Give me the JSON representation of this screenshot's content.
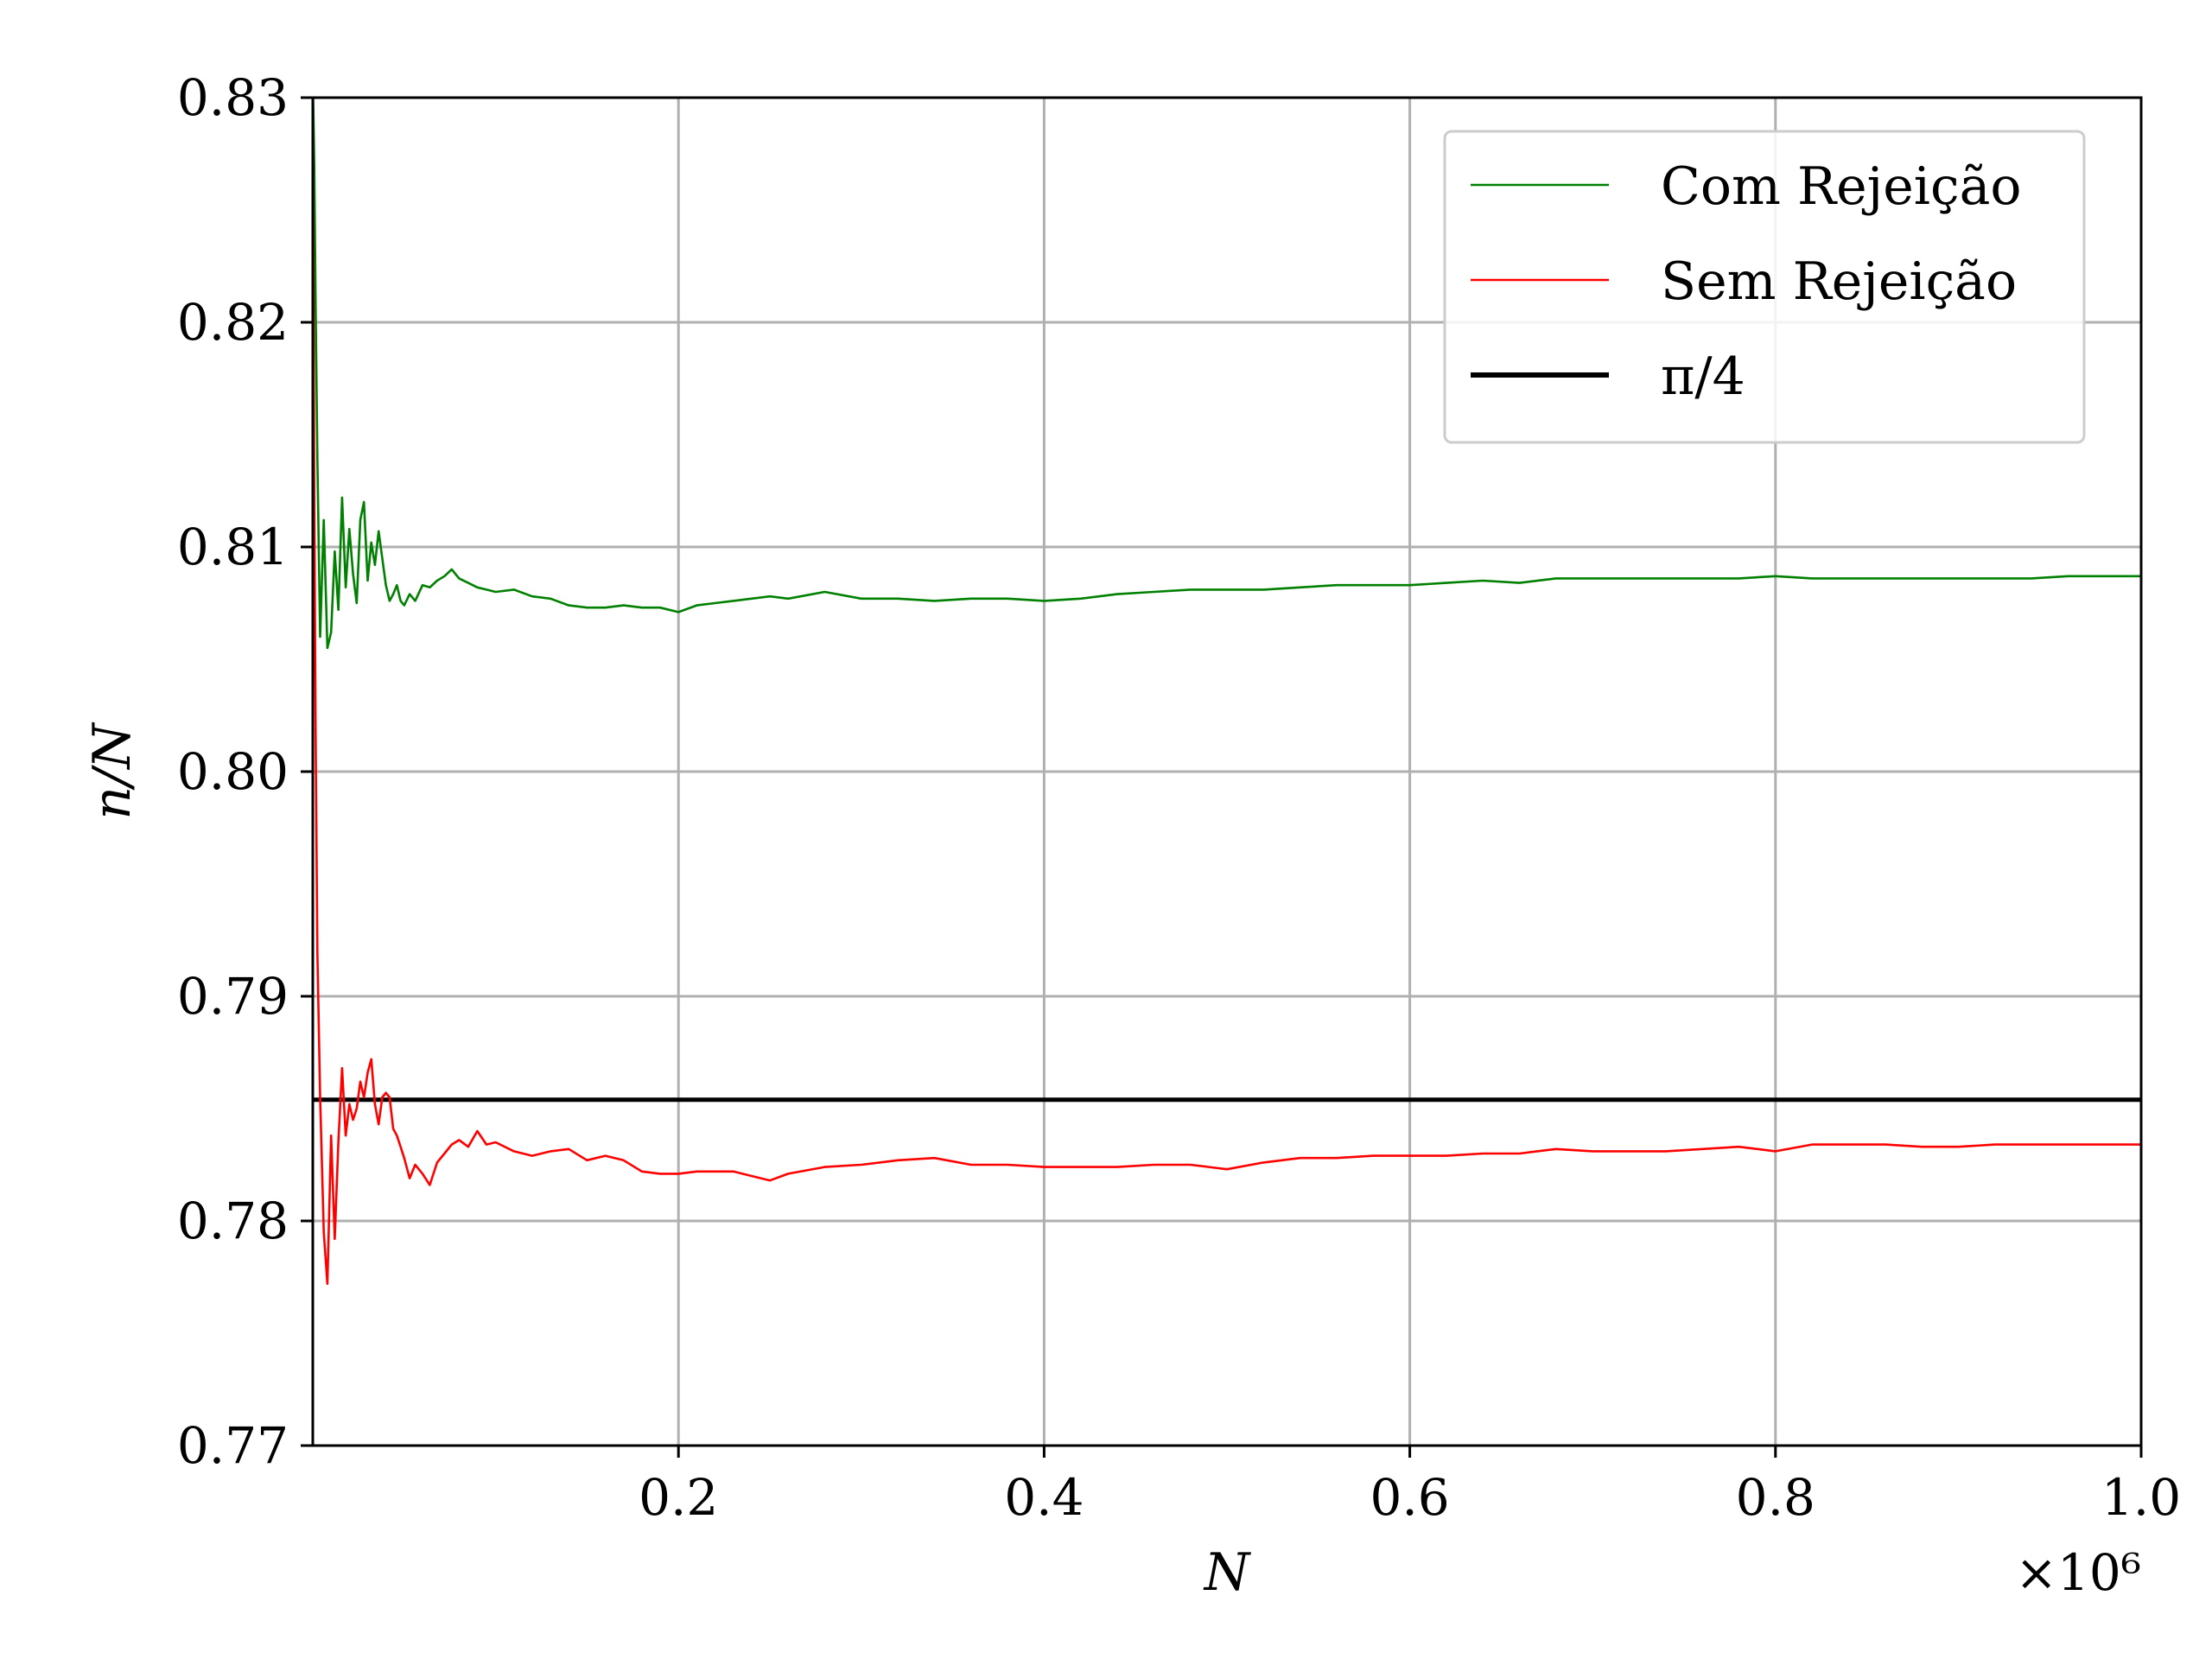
{
  "chart_data": {
    "type": "line",
    "xlabel": "N",
    "ylabel": "n/N",
    "x_multiplier_label": "×10⁶",
    "xlim": [
      0,
      1000000
    ],
    "ylim": [
      0.77,
      0.83
    ],
    "x_ticks": [
      200000,
      400000,
      600000,
      800000,
      1000000
    ],
    "x_tick_labels": [
      "0.2",
      "0.4",
      "0.6",
      "0.8",
      "1.0"
    ],
    "y_ticks": [
      0.77,
      0.78,
      0.79,
      0.8,
      0.81,
      0.82,
      0.83
    ],
    "y_tick_labels": [
      "0.77",
      "0.78",
      "0.79",
      "0.80",
      "0.81",
      "0.82",
      "0.83"
    ],
    "grid": true,
    "legend_position": "top-right",
    "series": [
      {
        "name": "Com Rejeição",
        "color": "#008000",
        "x": [
          0,
          800,
          1500,
          2500,
          4000,
          6000,
          8000,
          10000,
          12000,
          14000,
          16000,
          18000,
          20000,
          22000,
          24000,
          26000,
          28000,
          30000,
          32000,
          34000,
          36000,
          38000,
          40000,
          42000,
          44000,
          46000,
          48000,
          50000,
          53000,
          56000,
          60000,
          64000,
          68000,
          72000,
          76000,
          80000,
          85000,
          90000,
          95000,
          100000,
          110000,
          120000,
          130000,
          140000,
          150000,
          160000,
          170000,
          180000,
          190000,
          200000,
          210000,
          220000,
          230000,
          240000,
          250000,
          260000,
          280000,
          300000,
          320000,
          340000,
          360000,
          380000,
          400000,
          420000,
          440000,
          460000,
          480000,
          500000,
          520000,
          540000,
          560000,
          580000,
          600000,
          620000,
          640000,
          660000,
          680000,
          700000,
          720000,
          740000,
          760000,
          780000,
          800000,
          820000,
          840000,
          860000,
          880000,
          900000,
          920000,
          940000,
          960000,
          980000,
          1000000
        ],
        "y": [
          0.831,
          0.827,
          0.821,
          0.814,
          0.806,
          0.8112,
          0.8055,
          0.8062,
          0.8098,
          0.8072,
          0.8122,
          0.8082,
          0.8108,
          0.8088,
          0.8075,
          0.8112,
          0.812,
          0.8085,
          0.8102,
          0.8092,
          0.8107,
          0.8095,
          0.8083,
          0.8076,
          0.8079,
          0.8083,
          0.8076,
          0.8074,
          0.8079,
          0.8076,
          0.8083,
          0.8082,
          0.8085,
          0.8087,
          0.809,
          0.8086,
          0.8084,
          0.8082,
          0.8081,
          0.808,
          0.8081,
          0.8078,
          0.8077,
          0.8074,
          0.8073,
          0.8073,
          0.8074,
          0.8073,
          0.8073,
          0.8071,
          0.8074,
          0.8075,
          0.8076,
          0.8077,
          0.8078,
          0.8077,
          0.808,
          0.8077,
          0.8077,
          0.8076,
          0.8077,
          0.8077,
          0.8076,
          0.8077,
          0.8079,
          0.808,
          0.8081,
          0.8081,
          0.8081,
          0.8082,
          0.8083,
          0.8083,
          0.8083,
          0.8084,
          0.8085,
          0.8084,
          0.8086,
          0.8086,
          0.8086,
          0.8086,
          0.8086,
          0.8086,
          0.8087,
          0.8086,
          0.8086,
          0.8086,
          0.8086,
          0.8086,
          0.8086,
          0.8086,
          0.8087,
          0.8087,
          0.8087
        ]
      },
      {
        "name": "Sem Rejeição",
        "color": "#ff0000",
        "x": [
          0,
          800,
          1500,
          2500,
          4000,
          6000,
          8000,
          10000,
          12000,
          14000,
          16000,
          18000,
          20000,
          22000,
          24000,
          26000,
          28000,
          30000,
          32000,
          34000,
          36000,
          38000,
          40000,
          42000,
          44000,
          46000,
          48000,
          50000,
          53000,
          56000,
          60000,
          64000,
          68000,
          72000,
          76000,
          80000,
          85000,
          90000,
          95000,
          100000,
          110000,
          120000,
          130000,
          140000,
          150000,
          160000,
          170000,
          180000,
          190000,
          200000,
          210000,
          220000,
          230000,
          240000,
          250000,
          260000,
          280000,
          300000,
          320000,
          340000,
          360000,
          380000,
          400000,
          420000,
          440000,
          460000,
          480000,
          500000,
          520000,
          540000,
          560000,
          580000,
          600000,
          620000,
          640000,
          660000,
          680000,
          700000,
          720000,
          740000,
          760000,
          780000,
          800000,
          820000,
          840000,
          860000,
          880000,
          900000,
          920000,
          940000,
          960000,
          980000,
          1000000
        ],
        "y": [
          0.8295,
          0.812,
          0.802,
          0.792,
          0.7855,
          0.7795,
          0.7772,
          0.7838,
          0.7792,
          0.7835,
          0.7868,
          0.7838,
          0.7852,
          0.7845,
          0.785,
          0.7862,
          0.7855,
          0.7866,
          0.7872,
          0.7852,
          0.7843,
          0.7855,
          0.7857,
          0.7855,
          0.7841,
          0.7838,
          0.7833,
          0.7828,
          0.7819,
          0.7825,
          0.7821,
          0.7816,
          0.7826,
          0.783,
          0.7834,
          0.7836,
          0.7833,
          0.784,
          0.7834,
          0.7835,
          0.7831,
          0.7829,
          0.7831,
          0.7832,
          0.7827,
          0.7829,
          0.7827,
          0.7822,
          0.7821,
          0.7821,
          0.7822,
          0.7822,
          0.7822,
          0.782,
          0.7818,
          0.7821,
          0.7824,
          0.7825,
          0.7827,
          0.7828,
          0.7825,
          0.7825,
          0.7824,
          0.7824,
          0.7824,
          0.7825,
          0.7825,
          0.7823,
          0.7826,
          0.7828,
          0.7828,
          0.7829,
          0.7829,
          0.7829,
          0.783,
          0.783,
          0.7832,
          0.7831,
          0.7831,
          0.7831,
          0.7832,
          0.7833,
          0.7831,
          0.7834,
          0.7834,
          0.7834,
          0.7833,
          0.7833,
          0.7834,
          0.7834,
          0.7834,
          0.7834,
          0.7834
        ]
      },
      {
        "name": "π/4",
        "color": "#000000",
        "x": [
          0,
          1000000
        ],
        "y": [
          0.785398,
          0.785398
        ]
      }
    ]
  }
}
